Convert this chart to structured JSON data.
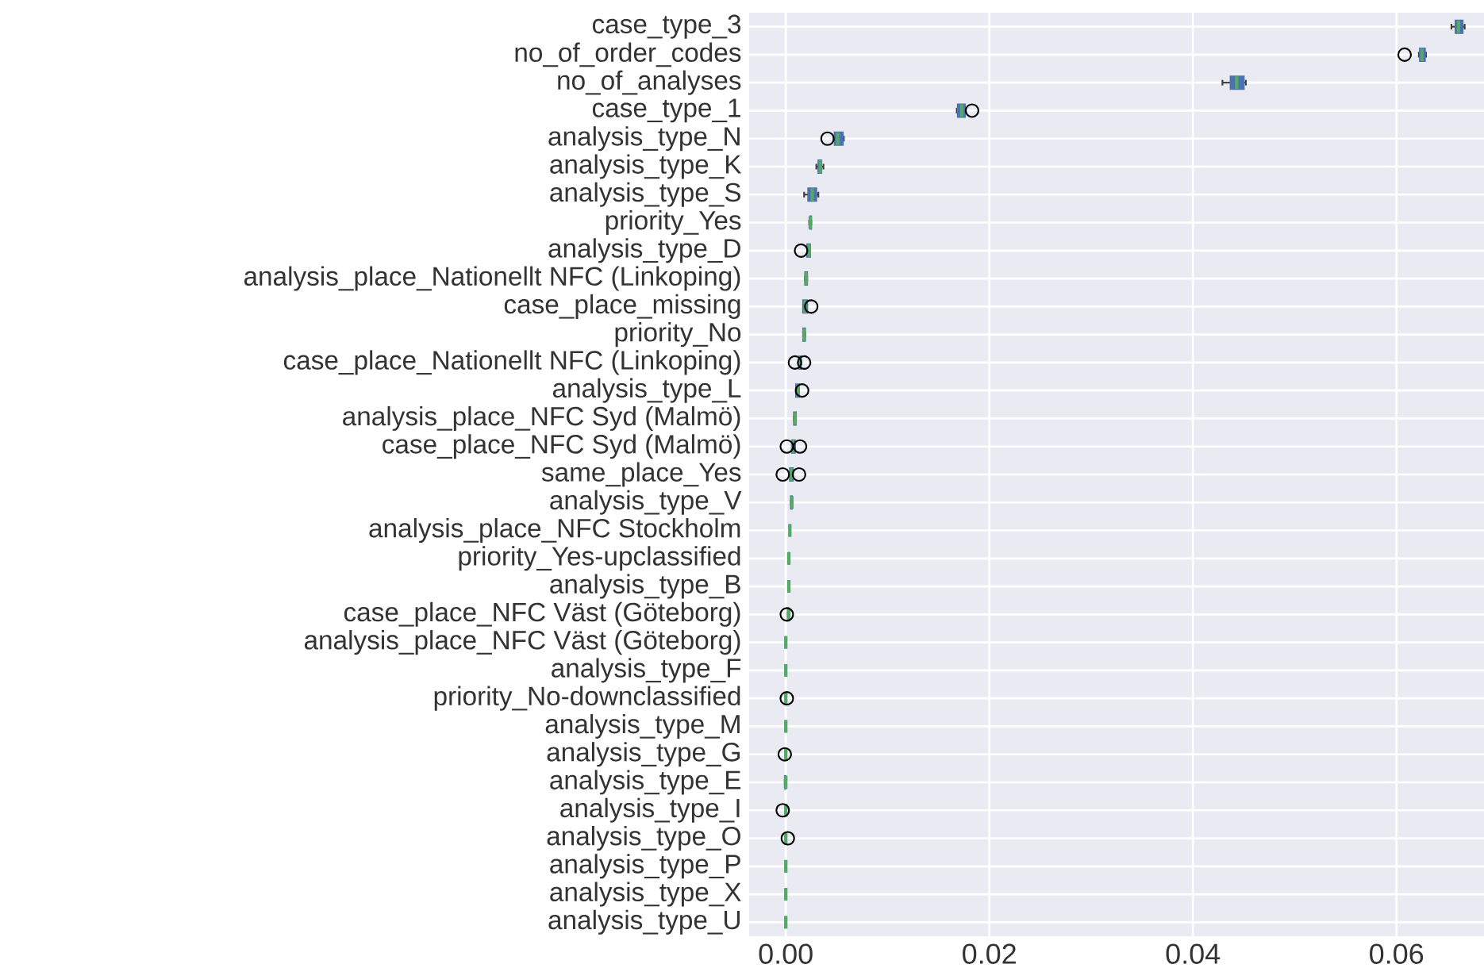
{
  "chart_data": {
    "type": "box",
    "orientation": "horizontal",
    "categories": [
      "case_type_3",
      "no_of_order_codes",
      "no_of_analyses",
      "case_type_1",
      "analysis_type_N",
      "analysis_type_K",
      "analysis_type_S",
      "priority_Yes",
      "analysis_type_D",
      "analysis_place_Nationellt NFC (Linkoping)",
      "case_place_missing",
      "priority_No",
      "case_place_Nationellt NFC (Linkoping)",
      "analysis_type_L",
      "analysis_place_NFC Syd (Malmö)",
      "case_place_NFC Syd (Malmö)",
      "same_place_Yes",
      "analysis_type_V",
      "analysis_place_NFC Stockholm",
      "priority_Yes-upclassified",
      "analysis_type_B",
      "case_place_NFC Väst (Göteborg)",
      "analysis_place_NFC Väst (Göteborg)",
      "analysis_type_F",
      "priority_No-downclassified",
      "analysis_type_M",
      "analysis_type_G",
      "analysis_type_E",
      "analysis_type_I",
      "analysis_type_O",
      "analysis_type_P",
      "analysis_type_X",
      "analysis_type_U"
    ],
    "series": [
      {
        "color": "#4c72b0",
        "boxes": [
          {
            "low": 0.0654,
            "q1": 0.0658,
            "median": 0.0661,
            "q3": 0.0665,
            "high": 0.0667
          },
          {
            "low": 0.0622,
            "q1": 0.0623,
            "median": 0.0625,
            "q3": 0.0628,
            "high": 0.0629,
            "outliers": [
              0.0608
            ]
          },
          {
            "low": 0.0429,
            "q1": 0.0437,
            "median": 0.0443,
            "q3": 0.045,
            "high": 0.0452
          },
          {
            "low": 0.0168,
            "q1": 0.0169,
            "median": 0.0173,
            "q3": 0.0176,
            "high": 0.0177,
            "outliers": [
              0.0183
            ]
          },
          {
            "low": 0.0047,
            "q1": 0.0048,
            "median": 0.0051,
            "q3": 0.0056,
            "high": 0.0057,
            "outliers": [
              0.0041
            ]
          },
          {
            "low": 0.003,
            "q1": 0.0032,
            "median": 0.0034,
            "q3": 0.0035,
            "high": 0.0037
          },
          {
            "low": 0.0018,
            "q1": 0.0022,
            "median": 0.0026,
            "q3": 0.003,
            "high": 0.0032
          },
          {
            "low": 0.0023,
            "q1": 0.0024,
            "median": 0.0024,
            "q3": 0.0025,
            "high": 0.0025
          },
          {
            "low": 0.0021,
            "q1": 0.0021,
            "median": 0.0023,
            "q3": 0.0024,
            "high": 0.0024,
            "outliers": [
              0.0015
            ]
          },
          {
            "low": 0.0019,
            "q1": 0.0019,
            "median": 0.002,
            "q3": 0.0021,
            "high": 0.0021
          },
          {
            "low": 0.0017,
            "q1": 0.0017,
            "median": 0.0019,
            "q3": 0.0021,
            "high": 0.0021,
            "outliers": [
              0.0025
            ]
          },
          {
            "low": 0.0017,
            "q1": 0.0017,
            "median": 0.0018,
            "q3": 0.0019,
            "high": 0.0019
          },
          {
            "low": 0.0013,
            "q1": 0.0013,
            "median": 0.0014,
            "q3": 0.0015,
            "high": 0.0015,
            "outliers": [
              0.0009,
              0.0018
            ]
          },
          {
            "low": 0.001,
            "q1": 0.001,
            "median": 0.0012,
            "q3": 0.0013,
            "high": 0.0013,
            "outliers": [
              0.0016
            ]
          },
          {
            "low": 0.0008,
            "q1": 0.0008,
            "median": 0.0009,
            "q3": 0.001,
            "high": 0.001
          },
          {
            "low": 0.0006,
            "q1": 0.0006,
            "median": 0.0007,
            "q3": 0.0009,
            "high": 0.0009,
            "outliers": [
              0.0001,
              0.0014
            ]
          },
          {
            "low": 0.0004,
            "q1": 0.0004,
            "median": 0.0005,
            "q3": 0.0007,
            "high": 0.0007,
            "outliers": [
              -0.0003,
              0.0013
            ]
          },
          {
            "low": 0.0005,
            "q1": 0.0005,
            "median": 0.0006,
            "q3": 0.0006,
            "high": 0.0006
          },
          {
            "low": 0.0004,
            "q1": 0.0004,
            "median": 0.0004,
            "q3": 0.0004,
            "high": 0.0004
          },
          {
            "low": 0.0003,
            "q1": 0.0003,
            "median": 0.0003,
            "q3": 0.0003,
            "high": 0.0003
          },
          {
            "low": 0.0003,
            "q1": 0.0003,
            "median": 0.0003,
            "q3": 0.0003,
            "high": 0.0003
          },
          {
            "low": 0.0002,
            "q1": 0.0002,
            "median": 0.0003,
            "q3": 0.0003,
            "high": 0.0003,
            "outliers": [
              0.0001
            ]
          },
          {
            "low": 0.0,
            "q1": 0.0,
            "median": 0.0,
            "q3": 0.0,
            "high": 0.0
          },
          {
            "low": 0.0,
            "q1": 0.0,
            "median": 0.0,
            "q3": 0.0,
            "high": 0.0
          },
          {
            "low": 0.0,
            "q1": 0.0,
            "median": 0.0,
            "q3": 0.0,
            "high": 0.0,
            "outliers": [
              0.0001
            ]
          },
          {
            "low": 0.0,
            "q1": 0.0,
            "median": 0.0,
            "q3": 0.0,
            "high": 0.0
          },
          {
            "low": 0.0,
            "q1": 0.0,
            "median": 0.0,
            "q3": 0.0,
            "high": 0.0,
            "outliers": [
              -0.0001
            ]
          },
          {
            "low": -0.0001,
            "q1": -0.0001,
            "median": 0.0,
            "q3": 0.0,
            "high": 0.0
          },
          {
            "low": 0.0,
            "q1": 0.0,
            "median": 0.0,
            "q3": 0.0,
            "high": 0.0,
            "outliers": [
              -0.0003
            ]
          },
          {
            "low": 0.0,
            "q1": 0.0,
            "median": 0.0,
            "q3": 0.0,
            "high": 0.0,
            "outliers": [
              0.0002
            ]
          },
          {
            "low": 0.0,
            "q1": 0.0,
            "median": 0.0,
            "q3": 0.0,
            "high": 0.0
          },
          {
            "low": 0.0,
            "q1": 0.0,
            "median": 0.0,
            "q3": 0.0,
            "high": 0.0
          },
          {
            "low": 0.0,
            "q1": 0.0,
            "median": 0.0,
            "q3": 0.0,
            "high": 0.0
          }
        ]
      }
    ],
    "xlim": [
      -0.0036,
      0.0686
    ],
    "xticks": [
      {
        "value": 0,
        "label": "0.00"
      },
      {
        "value": 0.02,
        "label": "0.02"
      },
      {
        "value": 0.04,
        "label": "0.04"
      },
      {
        "value": 0.06,
        "label": "0.06"
      }
    ],
    "grid": true
  }
}
